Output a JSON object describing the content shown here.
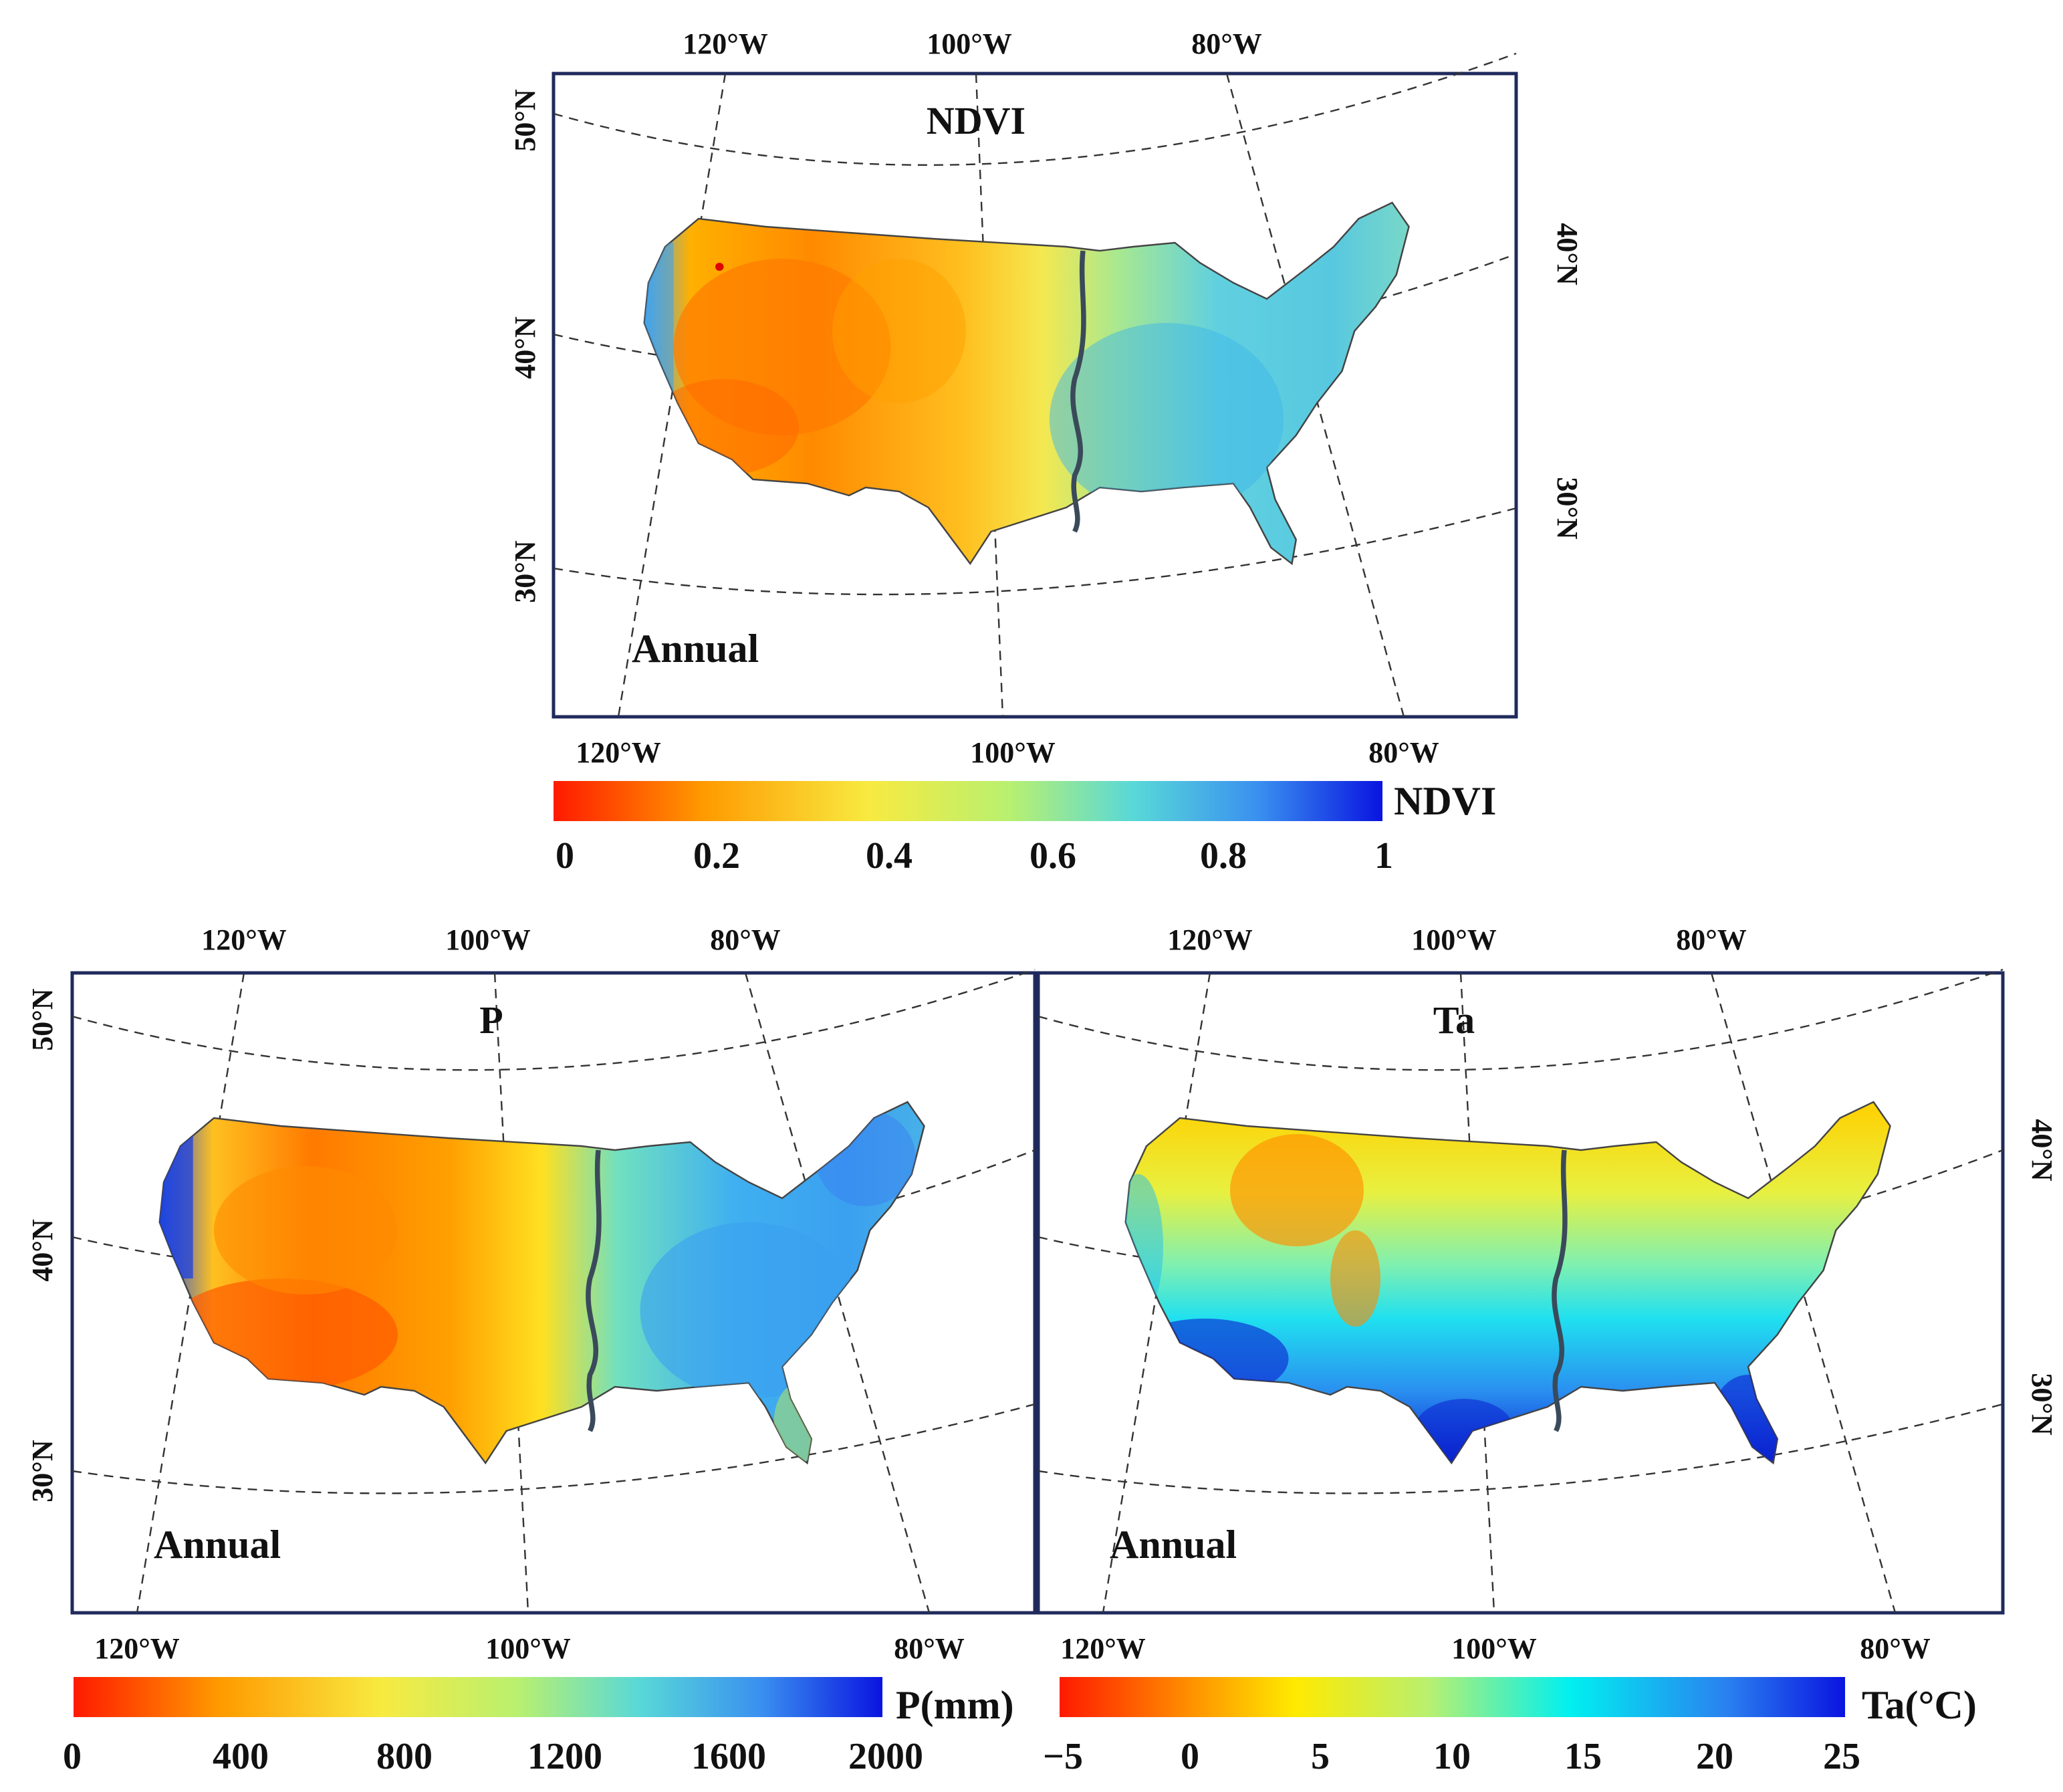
{
  "maps": [
    {
      "id": "ndvi",
      "title": "NDVI",
      "annotation": "Annual",
      "top_lon_labels": [
        "120°W",
        "100°W",
        "80°W"
      ],
      "bottom_lon_labels": [
        "120°W",
        "100°W",
        "80°W"
      ],
      "left_lat_labels": [
        "50°N",
        "40°N",
        "30°N"
      ],
      "right_lat_labels": [
        "40°N",
        "30°N"
      ],
      "colorbar": {
        "label": "NDVI",
        "ticks": [
          "0",
          "0.2",
          "0.4",
          "0.6",
          "0.8",
          "1"
        ],
        "range": [
          0,
          1
        ]
      }
    },
    {
      "id": "p",
      "title": "P",
      "annotation": "Annual",
      "top_lon_labels": [
        "120°W",
        "100°W",
        "80°W"
      ],
      "bottom_lon_labels": [
        "120°W",
        "100°W",
        "80°W"
      ],
      "left_lat_labels": [
        "50°N",
        "40°N",
        "30°N"
      ],
      "right_lat_labels": [],
      "colorbar": {
        "label": "P(mm)",
        "ticks": [
          "0",
          "400",
          "800",
          "1200",
          "1600",
          "2000"
        ],
        "range": [
          0,
          2000
        ]
      }
    },
    {
      "id": "ta",
      "title": "Ta",
      "annotation": "Annual",
      "top_lon_labels": [
        "120°W",
        "100°W",
        "80°W"
      ],
      "bottom_lon_labels": [
        "120°W",
        "100°W",
        "80°W"
      ],
      "left_lat_labels": [],
      "right_lat_labels": [
        "40°N",
        "30°N"
      ],
      "colorbar": {
        "label": "Ta(°C)",
        "ticks": [
          "−5",
          "0",
          "5",
          "10",
          "15",
          "20",
          "25"
        ],
        "range": [
          -5,
          25
        ]
      }
    }
  ],
  "colors": {
    "low": "#ff1a00",
    "mid_low": "#ffb000",
    "mid": "#f8f040",
    "mid_high": "#60e0d0",
    "high": "#2a6ef0",
    "max": "#0a14e0",
    "frame": "#1f2a5c",
    "river": "#3a4a5a"
  }
}
